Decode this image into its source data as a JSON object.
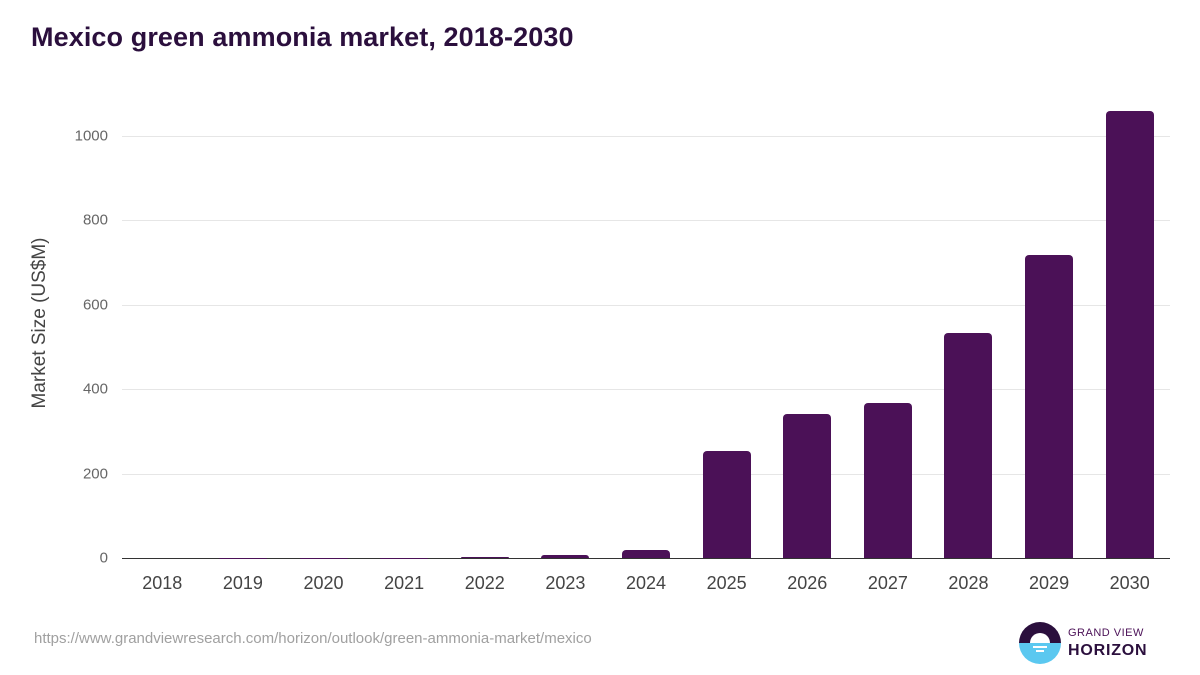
{
  "header": {
    "title": "Mexico green ammonia market, 2018-2030"
  },
  "chart_data": {
    "type": "bar",
    "title": "Mexico green ammonia market, 2018-2030",
    "xlabel": "",
    "ylabel": "Market Size (US$M)",
    "categories": [
      "2018",
      "2019",
      "2020",
      "2021",
      "2022",
      "2023",
      "2024",
      "2025",
      "2026",
      "2027",
      "2028",
      "2029",
      "2030"
    ],
    "values": [
      0.1,
      0.2,
      0.4,
      0.8,
      2.5,
      7,
      19,
      254,
      341,
      367,
      533,
      718,
      1059
    ],
    "ylim": [
      0,
      1100
    ],
    "yticks": [
      "0",
      "200",
      "400",
      "600",
      "800",
      "1000"
    ],
    "grid": true,
    "legend": "none",
    "bar_color": "#4b1157"
  },
  "footer": {
    "source_url": "https://www.grandviewresearch.com/horizon/outlook/green-ammonia-market/mexico",
    "logo_top": "GRAND VIEW",
    "logo_bottom": "HORIZON"
  }
}
